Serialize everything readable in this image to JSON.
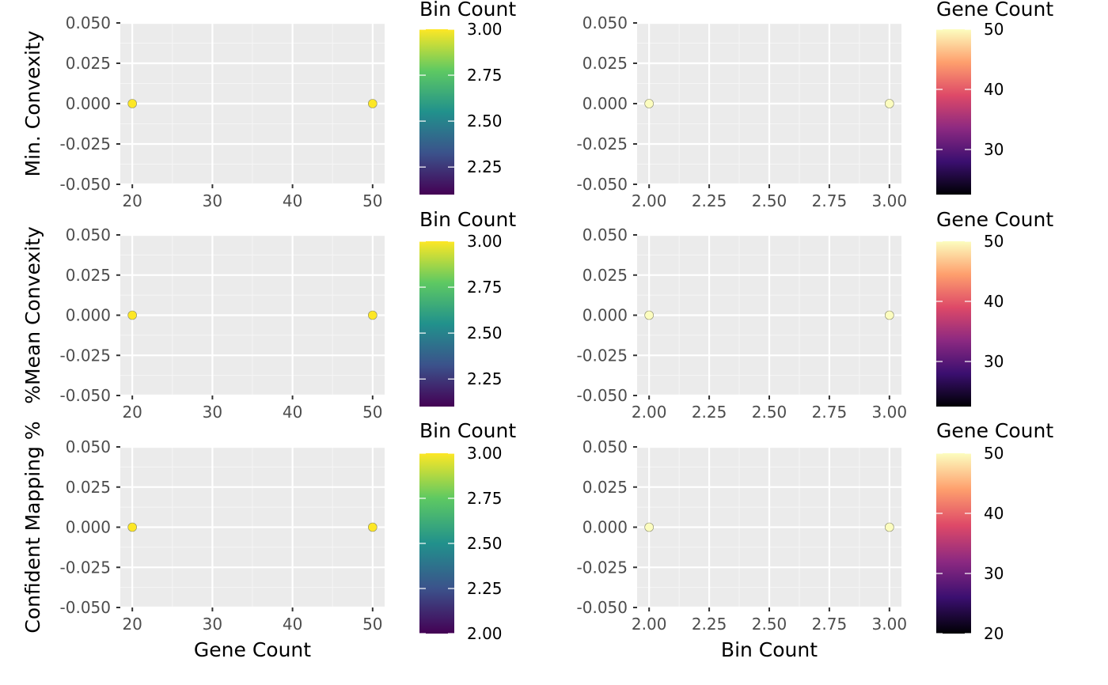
{
  "colors": {
    "panel_bg": "#ebebeb",
    "grid_major": "#ffffff",
    "grid_minor": "#f5f5f5",
    "tick_text": "#4d4d4d",
    "point_outline": "#8a8a6a"
  },
  "gradients": {
    "viridis": [
      "#440154",
      "#3b528b",
      "#21918c",
      "#5ec962",
      "#fde725"
    ],
    "magma": [
      "#000004",
      "#3b0f70",
      "#8c2981",
      "#de4968",
      "#fe9f6d",
      "#fcfdbf"
    ]
  },
  "chart_data": [
    {
      "type": "scatter",
      "ylabel": "Min. Convexity",
      "xlabel": "",
      "xlim": [
        18.5,
        51.5
      ],
      "ylim": [
        -0.05,
        0.05
      ],
      "xticks": [
        20,
        30,
        40,
        50
      ],
      "xtick_labels": [
        "20",
        "30",
        "40",
        "50"
      ],
      "yticks": [
        -0.05,
        -0.025,
        0,
        0.025,
        0.05
      ],
      "ytick_labels": [
        "-0.050",
        "-0.025",
        "0.000",
        "0.025",
        "0.050"
      ],
      "points": [
        {
          "x": 20,
          "y": 0,
          "color_value": 3
        },
        {
          "x": 50,
          "y": 0,
          "color_value": 3
        }
      ],
      "legend": {
        "title": "Bin Count",
        "palette": "viridis",
        "range": [
          2.1,
          3.0
        ],
        "ticks": [
          2.25,
          2.5,
          2.75,
          3.0
        ],
        "labels": [
          "2.25",
          "2.50",
          "2.75",
          "3.00"
        ]
      }
    },
    {
      "type": "scatter",
      "ylabel": "",
      "xlabel": "",
      "xlim": [
        1.95,
        3.05
      ],
      "ylim": [
        -0.05,
        0.05
      ],
      "xticks": [
        2,
        2.25,
        2.5,
        2.75,
        3
      ],
      "xtick_labels": [
        "2.00",
        "2.25",
        "2.50",
        "2.75",
        "3.00"
      ],
      "yticks": [
        -0.05,
        -0.025,
        0,
        0.025,
        0.05
      ],
      "ytick_labels": [
        "-0.050",
        "-0.025",
        "0.000",
        "0.025",
        "0.050"
      ],
      "points": [
        {
          "x": 2,
          "y": 0,
          "color_value": 50
        },
        {
          "x": 3,
          "y": 0,
          "color_value": 50
        }
      ],
      "legend": {
        "title": "Gene Count",
        "palette": "magma",
        "range": [
          22.5,
          50
        ],
        "ticks": [
          30,
          40,
          50
        ],
        "labels": [
          "30",
          "40",
          "50"
        ]
      }
    },
    {
      "type": "scatter",
      "ylabel": "%Mean Convexity",
      "xlabel": "",
      "xlim": [
        18.5,
        51.5
      ],
      "ylim": [
        -0.05,
        0.05
      ],
      "xticks": [
        20,
        30,
        40,
        50
      ],
      "xtick_labels": [
        "20",
        "30",
        "40",
        "50"
      ],
      "yticks": [
        -0.05,
        -0.025,
        0,
        0.025,
        0.05
      ],
      "ytick_labels": [
        "-0.050",
        "-0.025",
        "0.000",
        "0.025",
        "0.050"
      ],
      "points": [
        {
          "x": 20,
          "y": 0,
          "color_value": 3
        },
        {
          "x": 50,
          "y": 0,
          "color_value": 3
        }
      ],
      "legend": {
        "title": "Bin Count",
        "palette": "viridis",
        "range": [
          2.1,
          3.0
        ],
        "ticks": [
          2.25,
          2.5,
          2.75,
          3.0
        ],
        "labels": [
          "2.25",
          "2.50",
          "2.75",
          "3.00"
        ]
      }
    },
    {
      "type": "scatter",
      "ylabel": "",
      "xlabel": "",
      "xlim": [
        1.95,
        3.05
      ],
      "ylim": [
        -0.05,
        0.05
      ],
      "xticks": [
        2,
        2.25,
        2.5,
        2.75,
        3
      ],
      "xtick_labels": [
        "2.00",
        "2.25",
        "2.50",
        "2.75",
        "3.00"
      ],
      "yticks": [
        -0.05,
        -0.025,
        0,
        0.025,
        0.05
      ],
      "ytick_labels": [
        "-0.050",
        "-0.025",
        "0.000",
        "0.025",
        "0.050"
      ],
      "points": [
        {
          "x": 2,
          "y": 0,
          "color_value": 50
        },
        {
          "x": 3,
          "y": 0,
          "color_value": 50
        }
      ],
      "legend": {
        "title": "Gene Count",
        "palette": "magma",
        "range": [
          22.5,
          50
        ],
        "ticks": [
          30,
          40,
          50
        ],
        "labels": [
          "30",
          "40",
          "50"
        ]
      }
    },
    {
      "type": "scatter",
      "ylabel": "Confident Mapping %",
      "xlabel": "Gene Count",
      "xlim": [
        18.5,
        51.5
      ],
      "ylim": [
        -0.05,
        0.05
      ],
      "xticks": [
        20,
        30,
        40,
        50
      ],
      "xtick_labels": [
        "20",
        "30",
        "40",
        "50"
      ],
      "yticks": [
        -0.05,
        -0.025,
        0,
        0.025,
        0.05
      ],
      "ytick_labels": [
        "-0.050",
        "-0.025",
        "0.000",
        "0.025",
        "0.050"
      ],
      "points": [
        {
          "x": 20,
          "y": 0,
          "color_value": 3
        },
        {
          "x": 50,
          "y": 0,
          "color_value": 3
        }
      ],
      "legend": {
        "title": "Bin Count",
        "palette": "viridis",
        "range": [
          2.0,
          3.0
        ],
        "ticks": [
          2.0,
          2.25,
          2.5,
          2.75,
          3.0
        ],
        "labels": [
          "2.00",
          "2.25",
          "2.50",
          "2.75",
          "3.00"
        ]
      }
    },
    {
      "type": "scatter",
      "ylabel": "",
      "xlabel": "Bin Count",
      "xlim": [
        1.95,
        3.05
      ],
      "ylim": [
        -0.05,
        0.05
      ],
      "xticks": [
        2,
        2.25,
        2.5,
        2.75,
        3
      ],
      "xtick_labels": [
        "2.00",
        "2.25",
        "2.50",
        "2.75",
        "3.00"
      ],
      "yticks": [
        -0.05,
        -0.025,
        0,
        0.025,
        0.05
      ],
      "ytick_labels": [
        "-0.050",
        "-0.025",
        "0.000",
        "0.025",
        "0.050"
      ],
      "points": [
        {
          "x": 2,
          "y": 0,
          "color_value": 50
        },
        {
          "x": 3,
          "y": 0,
          "color_value": 50
        }
      ],
      "legend": {
        "title": "Gene Count",
        "palette": "magma",
        "range": [
          20,
          50
        ],
        "ticks": [
          20,
          30,
          40,
          50
        ],
        "labels": [
          "20",
          "30",
          "40",
          "50"
        ]
      }
    }
  ]
}
